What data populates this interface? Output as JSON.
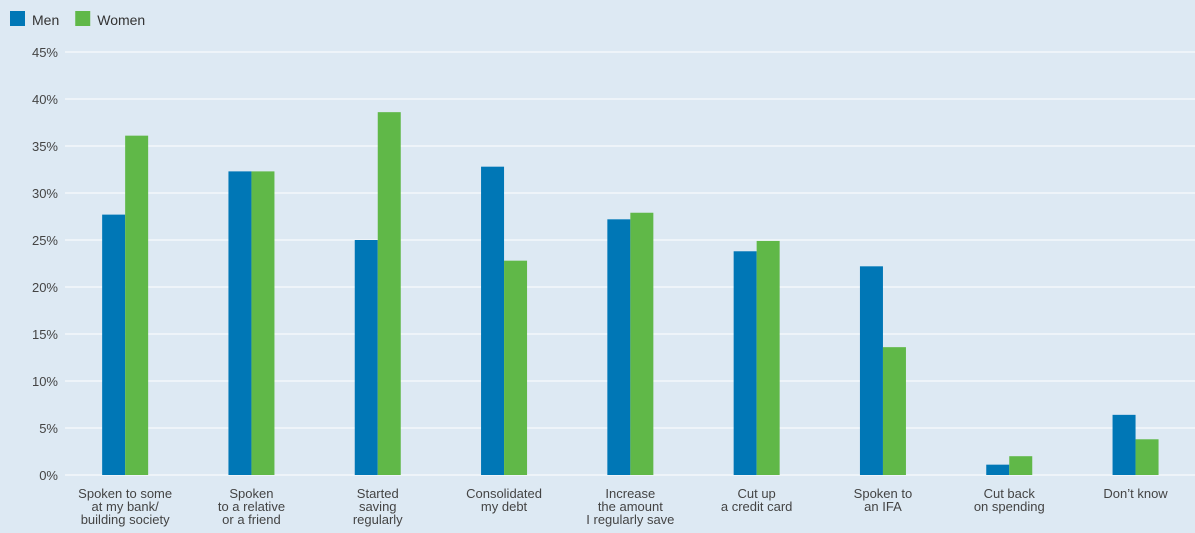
{
  "chart_data": {
    "type": "bar",
    "categories": [
      [
        "Spoken to some",
        "at my bank/",
        "building society"
      ],
      [
        "Spoken",
        "to a relative",
        "or a friend"
      ],
      [
        "Started",
        "saving",
        "regularly"
      ],
      [
        "Consolidated",
        "my debt"
      ],
      [
        "Increase",
        "the amount",
        "I regularly save"
      ],
      [
        "Cut up",
        "a credit card"
      ],
      [
        "Spoken to",
        "an IFA"
      ],
      [
        "Cut back",
        "on spending"
      ],
      [
        "Don’t know"
      ]
    ],
    "series": [
      {
        "name": "Men",
        "color": "#0077b6",
        "values": [
          27.7,
          32.3,
          25.0,
          32.8,
          27.2,
          23.8,
          22.2,
          1.1,
          6.4
        ]
      },
      {
        "name": "Women",
        "color": "#60b848",
        "values": [
          36.1,
          32.3,
          38.6,
          22.8,
          27.9,
          24.9,
          13.6,
          2.0,
          3.8
        ]
      }
    ],
    "ylim": [
      0,
      45
    ],
    "yticks": [
      "0%",
      "5%",
      "10%",
      "15%",
      "20%",
      "25%",
      "30%",
      "35%",
      "40%",
      "45%"
    ],
    "grid": true,
    "legend": "top-left",
    "title": "",
    "xlabel": "",
    "ylabel": ""
  }
}
